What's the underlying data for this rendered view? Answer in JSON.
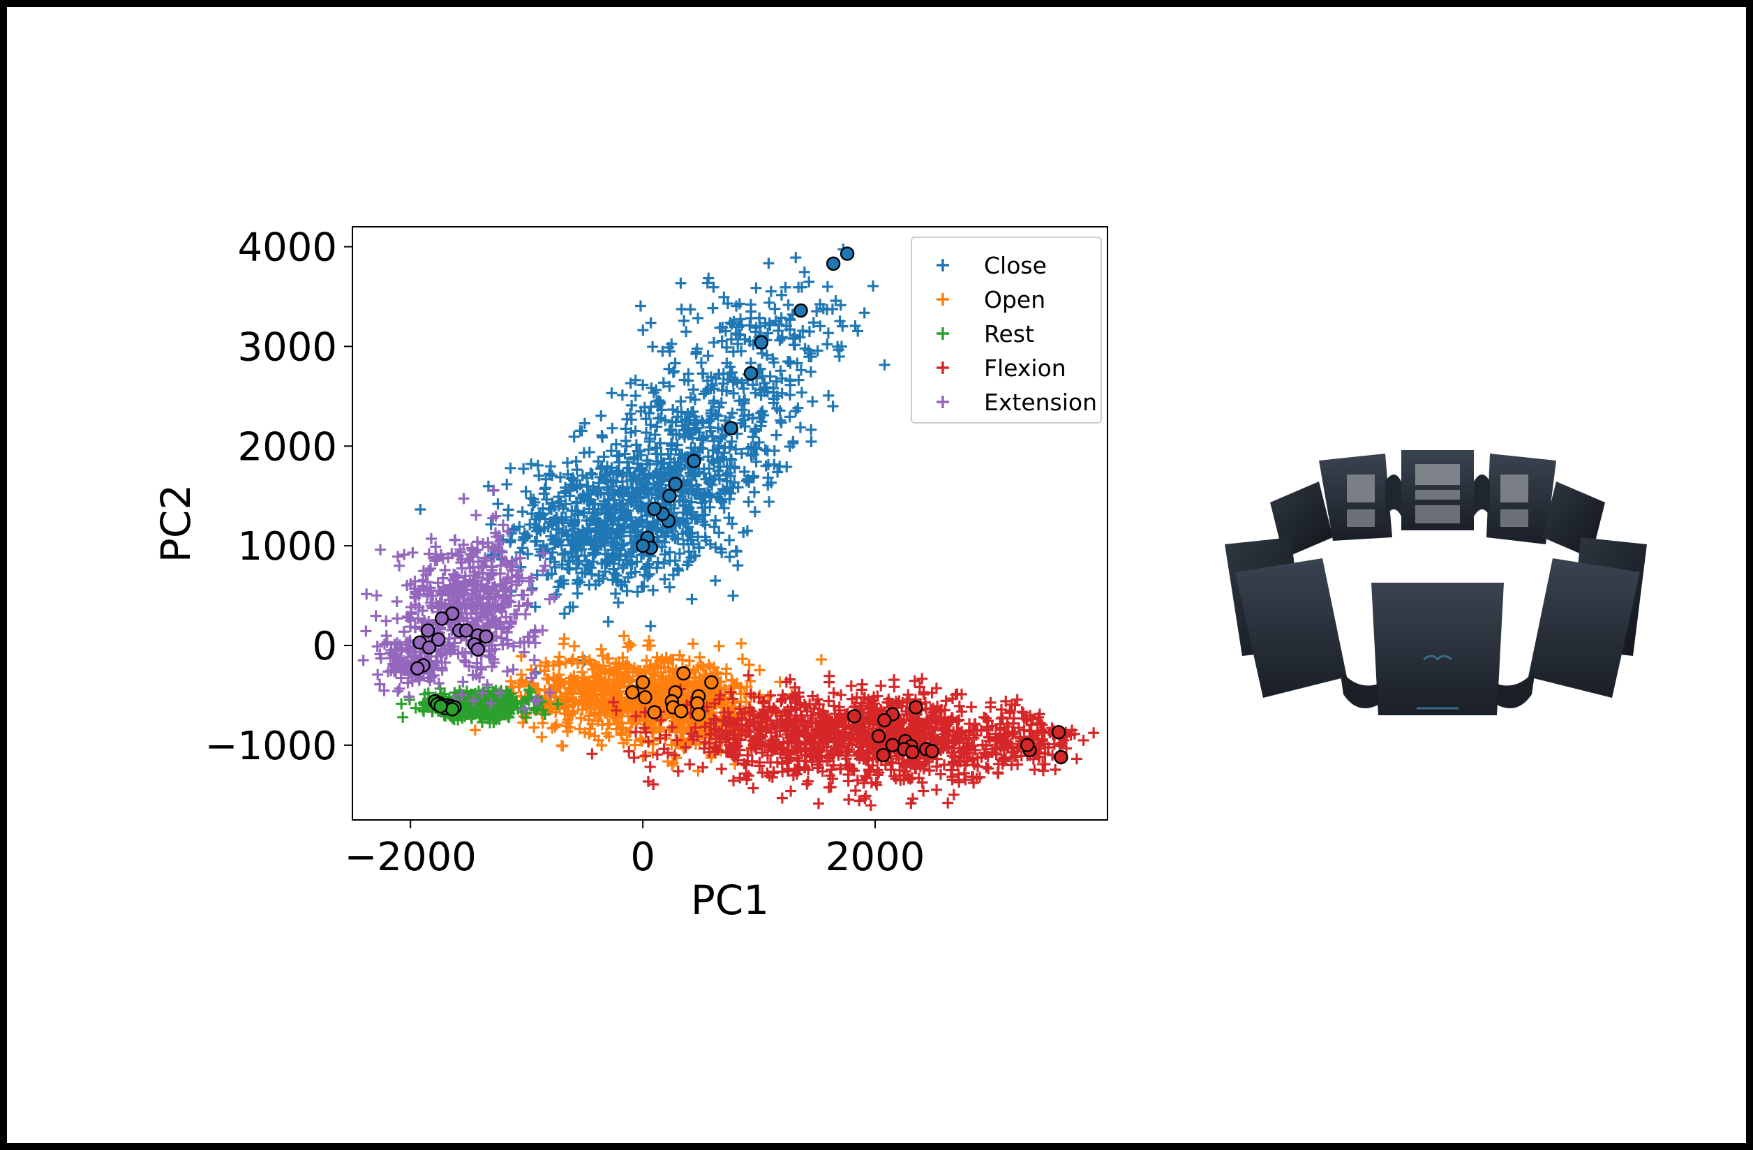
{
  "figure": {
    "background": "#ffffff",
    "border_color": "#000000"
  },
  "chart_data": {
    "type": "scatter",
    "title": "",
    "xlabel": "PC1",
    "ylabel": "PC2",
    "xlim": [
      -2500,
      4000
    ],
    "ylim": [
      -1750,
      4200
    ],
    "xticks": [
      -2000,
      0,
      2000
    ],
    "xtick_labels": [
      "−2000",
      "0",
      "2000"
    ],
    "yticks": [
      -1000,
      0,
      1000,
      2000,
      3000,
      4000
    ],
    "ytick_labels": [
      "−1000",
      "0",
      "1000",
      "2000",
      "3000",
      "4000"
    ],
    "grid": false,
    "legend_position": "top-right",
    "marker": "+",
    "highlight_marker": "circle-outlined-black",
    "series": [
      {
        "name": "Close",
        "color": "#1f77b4",
        "clusters": [
          {
            "cx": -300,
            "cy": 1200,
            "sx": 400,
            "sy": 350,
            "n": 650
          },
          {
            "cx": 300,
            "cy": 1700,
            "sx": 350,
            "sy": 400,
            "n": 350
          },
          {
            "cx": 800,
            "cy": 2600,
            "sx": 400,
            "sy": 500,
            "n": 260
          },
          {
            "cx": 1400,
            "cy": 3200,
            "sx": 300,
            "sy": 300,
            "n": 70
          }
        ],
        "highlighted": [
          [
            1760,
            3930
          ],
          [
            1640,
            3830
          ],
          [
            1360,
            3360
          ],
          [
            1020,
            3040
          ],
          [
            930,
            2730
          ],
          [
            760,
            2180
          ],
          [
            440,
            1850
          ],
          [
            280,
            1620
          ],
          [
            230,
            1500
          ],
          [
            220,
            1250
          ],
          [
            170,
            1320
          ],
          [
            100,
            1370
          ],
          [
            40,
            1080
          ],
          [
            70,
            980
          ],
          [
            0,
            1000
          ]
        ]
      },
      {
        "name": "Open",
        "color": "#ff7f0e",
        "clusters": [
          {
            "cx": -200,
            "cy": -480,
            "sx": 420,
            "sy": 200,
            "n": 650
          },
          {
            "cx": 450,
            "cy": -620,
            "sx": 300,
            "sy": 220,
            "n": 380
          }
        ],
        "highlighted": [
          [
            350,
            -280
          ],
          [
            0,
            -370
          ],
          [
            590,
            -370
          ],
          [
            -90,
            -470
          ],
          [
            280,
            -470
          ],
          [
            480,
            -510
          ],
          [
            20,
            -520
          ],
          [
            250,
            -560
          ],
          [
            470,
            -580
          ],
          [
            260,
            -620
          ],
          [
            330,
            -660
          ],
          [
            100,
            -670
          ],
          [
            480,
            -690
          ]
        ]
      },
      {
        "name": "Rest",
        "color": "#2ca02c",
        "clusters": [
          {
            "cx": -1400,
            "cy": -600,
            "sx": 220,
            "sy": 70,
            "n": 380
          },
          {
            "cx": -1720,
            "cy": -590,
            "sx": 80,
            "sy": 40,
            "n": 60
          }
        ],
        "highlighted": [
          [
            -1790,
            -560
          ],
          [
            -1750,
            -580
          ],
          [
            -1720,
            -600
          ],
          [
            -1680,
            -600
          ],
          [
            -1650,
            -610
          ],
          [
            -1620,
            -620
          ],
          [
            -1770,
            -590
          ],
          [
            -1700,
            -630
          ],
          [
            -1640,
            -640
          ],
          [
            -1740,
            -610
          ]
        ]
      },
      {
        "name": "Flexion",
        "color": "#d62728",
        "clusters": [
          {
            "cx": 1400,
            "cy": -900,
            "sx": 550,
            "sy": 200,
            "n": 700
          },
          {
            "cx": 2400,
            "cy": -950,
            "sx": 380,
            "sy": 220,
            "n": 500
          },
          {
            "cx": 3350,
            "cy": -950,
            "sx": 220,
            "sy": 150,
            "n": 120
          }
        ],
        "highlighted": [
          [
            1820,
            -710
          ],
          [
            2150,
            -690
          ],
          [
            2350,
            -620
          ],
          [
            2080,
            -750
          ],
          [
            2030,
            -910
          ],
          [
            2260,
            -960
          ],
          [
            2150,
            -1000
          ],
          [
            2310,
            -1010
          ],
          [
            2250,
            -1040
          ],
          [
            2440,
            -1040
          ],
          [
            2490,
            -1060
          ],
          [
            2320,
            -1070
          ],
          [
            2070,
            -1100
          ],
          [
            3330,
            -1050
          ],
          [
            3580,
            -870
          ],
          [
            3600,
            -1120
          ],
          [
            3310,
            -1000
          ]
        ]
      },
      {
        "name": "Extension",
        "color": "#9467bd",
        "clusters": [
          {
            "cx": -1500,
            "cy": 400,
            "sx": 300,
            "sy": 350,
            "n": 500
          },
          {
            "cx": -2000,
            "cy": -150,
            "sx": 130,
            "sy": 130,
            "n": 120
          }
        ],
        "highlighted": [
          [
            -1640,
            320
          ],
          [
            -1730,
            270
          ],
          [
            -1850,
            150
          ],
          [
            -1580,
            150
          ],
          [
            -1420,
            100
          ],
          [
            -1520,
            150
          ],
          [
            -1350,
            90
          ],
          [
            -1760,
            60
          ],
          [
            -1920,
            30
          ],
          [
            -1450,
            10
          ],
          [
            -1840,
            -20
          ],
          [
            -1420,
            -40
          ],
          [
            -1890,
            -200
          ],
          [
            -1940,
            -230
          ]
        ]
      }
    ]
  }
}
